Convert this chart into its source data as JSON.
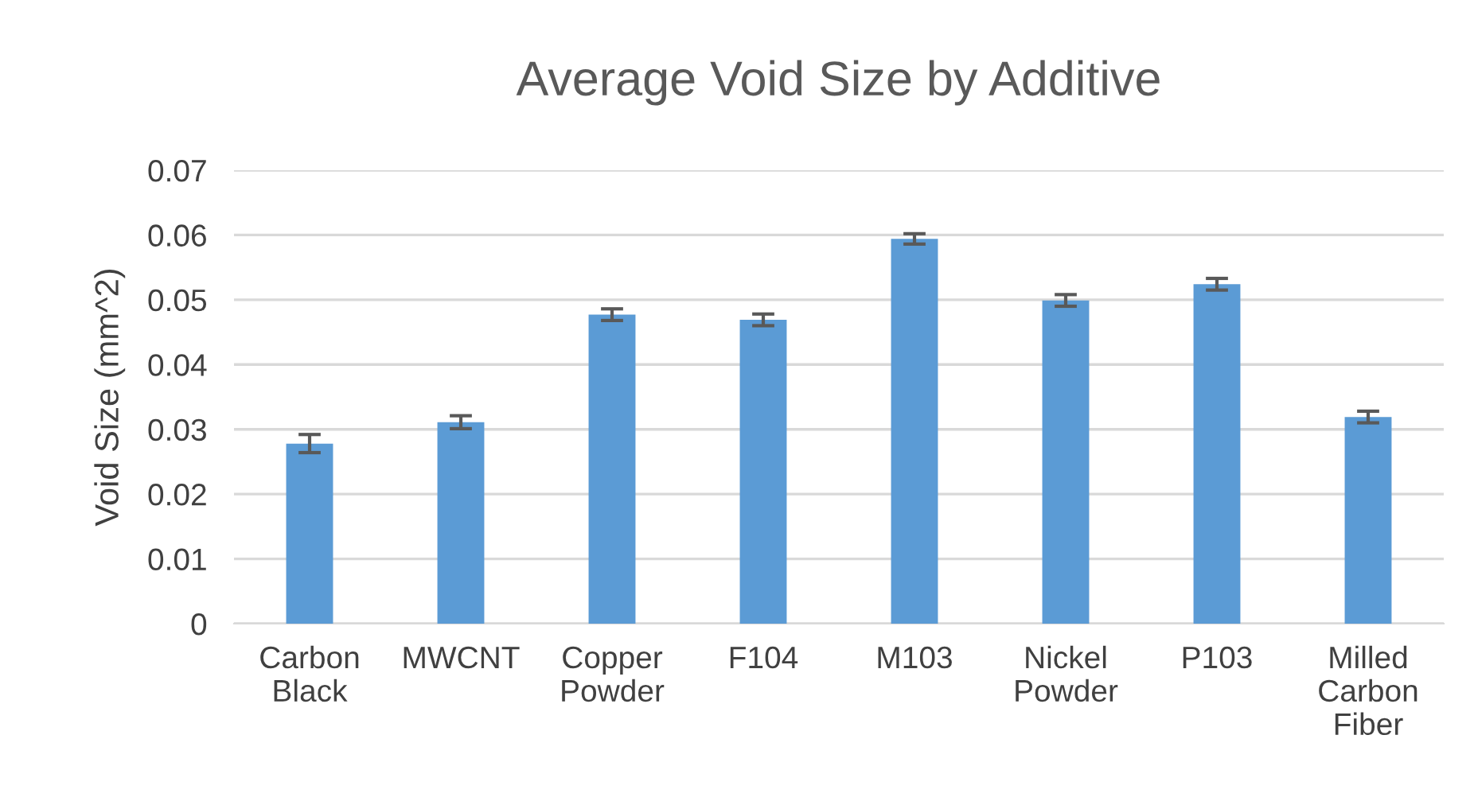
{
  "chart_data": {
    "type": "bar",
    "title": "Average Void Size by Additive",
    "ylabel": "Void Size (mm^2)",
    "categories": [
      "Carbon Black",
      "MWCNT",
      "Copper Powder",
      "F104",
      "M103",
      "Nickel Powder",
      "P103",
      "Milled Carbon Fiber"
    ],
    "values": [
      0.0278,
      0.0311,
      0.0477,
      0.0469,
      0.0594,
      0.0499,
      0.0524,
      0.0319
    ],
    "errors": [
      0.0014,
      0.001,
      0.0009,
      0.0009,
      0.0008,
      0.0009,
      0.0009,
      0.0009
    ],
    "color": "#5b9bd5",
    "ylim": [
      0,
      0.07
    ],
    "yticks": [
      {
        "value": 0,
        "label": "0"
      },
      0.01,
      0.02,
      0.03,
      0.04,
      0.05,
      0.06,
      0.07
    ],
    "grid": "y"
  }
}
